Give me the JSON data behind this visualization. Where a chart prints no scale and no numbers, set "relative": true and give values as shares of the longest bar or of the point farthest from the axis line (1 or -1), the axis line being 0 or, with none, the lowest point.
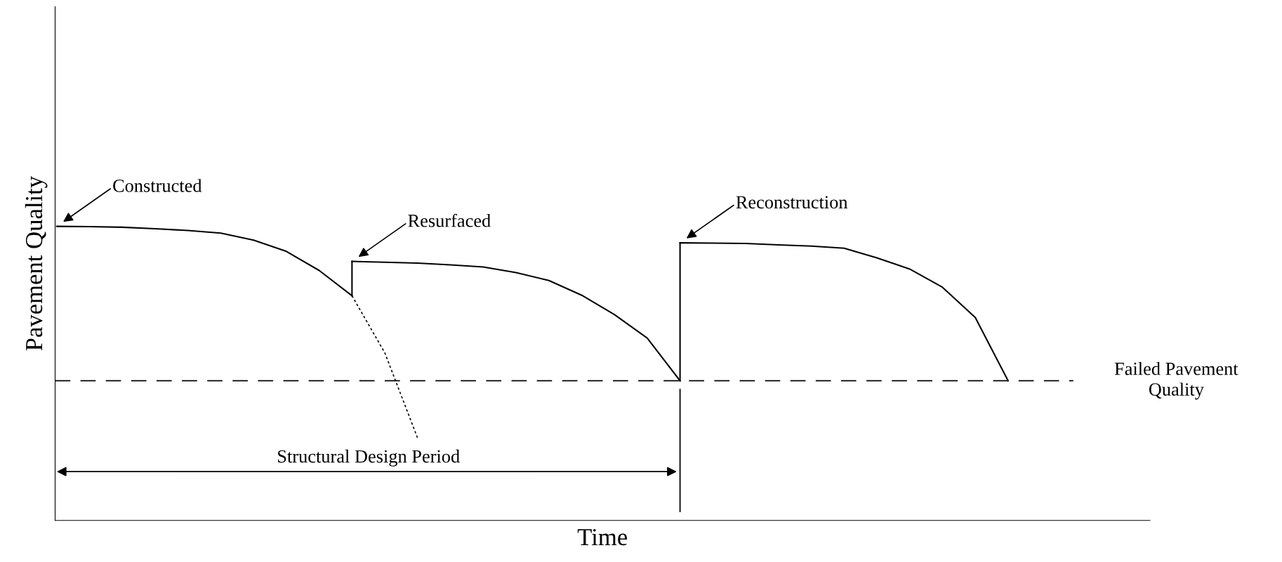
{
  "chart_data": {
    "type": "line",
    "relative": true,
    "xlabel": "Time",
    "ylabel": "Pavement Quality",
    "tick_labels": false,
    "categories": [
      null,
      null,
      null,
      null,
      null,
      null,
      null,
      null,
      null,
      null,
      null,
      null,
      null,
      null,
      null,
      null,
      null,
      null,
      null,
      null,
      null,
      null,
      null,
      null,
      null,
      null,
      null,
      null,
      null,
      null,
      null,
      null
    ],
    "series": [
      {
        "color": "#000000",
        "values": [
          1.0,
          0.999,
          0.997,
          0.992,
          0.986,
          0.977,
          0.953,
          0.915,
          0.85,
          0.764,
          null,
          null,
          null,
          null,
          null,
          null,
          null,
          null,
          null,
          null,
          null,
          null,
          null,
          null,
          null,
          null,
          null,
          null,
          null,
          null,
          null,
          null
        ]
      },
      {
        "color": "#000000",
        "line_style": "dotted",
        "values": [
          null,
          null,
          null,
          null,
          null,
          null,
          null,
          null,
          null,
          0.764,
          0.57,
          0.28,
          null,
          null,
          null,
          null,
          null,
          null,
          null,
          null,
          null,
          null,
          null,
          null,
          null,
          null,
          null,
          null,
          null,
          null,
          null,
          null
        ]
      },
      {
        "color": "#000000",
        "values": [
          null,
          null,
          null,
          null,
          null,
          null,
          null,
          null,
          null,
          0.881,
          0.878,
          0.875,
          0.869,
          0.862,
          0.843,
          0.816,
          0.766,
          0.7,
          0.62,
          0.475,
          null,
          null,
          null,
          null,
          null,
          null,
          null,
          null,
          null,
          null,
          null,
          null
        ]
      },
      {
        "color": "#000000",
        "values": [
          null,
          null,
          null,
          null,
          null,
          null,
          null,
          null,
          null,
          null,
          null,
          null,
          null,
          null,
          null,
          null,
          null,
          null,
          null,
          0.944,
          0.943,
          0.942,
          0.937,
          0.933,
          0.926,
          0.893,
          0.855,
          0.793,
          0.69,
          0.475,
          null,
          null
        ]
      }
    ],
    "ref_lines": [
      {
        "axis": "y",
        "value": 0.475,
        "label": "Failed Pavement\nQuality",
        "color": "#000000",
        "line_style": "dashed"
      }
    ],
    "annotations": [
      "Constructed",
      "Resurfaced",
      "Reconstruction",
      "Structural Design Period"
    ]
  }
}
